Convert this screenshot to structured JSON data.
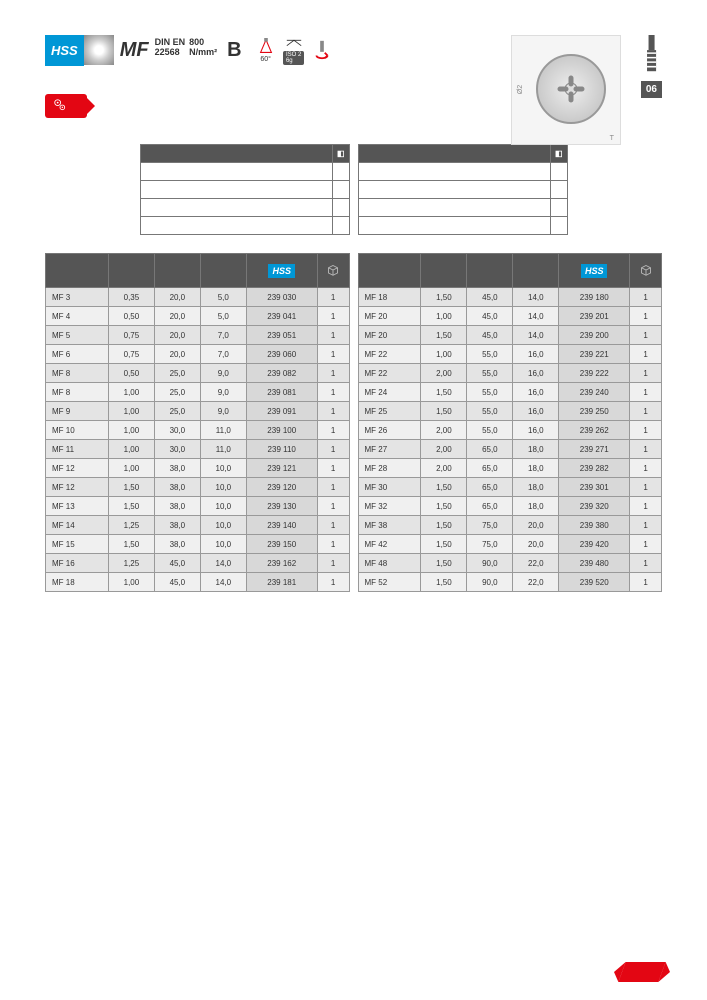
{
  "page_number": "06",
  "header": {
    "hss": "HSS",
    "mf": "MF",
    "din": "DIN EN",
    "din_num": "22568",
    "strength": "800",
    "strength_unit": "N/mm²",
    "class": "B",
    "angle": "60°",
    "iso": "ISO 2\n6g"
  },
  "diagram": {
    "d2": "Ø2",
    "t": "T"
  },
  "info_headers": [
    "",
    ""
  ],
  "columns": [
    "",
    "",
    "",
    "",
    ""
  ],
  "hss_label": "HSS",
  "left_rows": [
    [
      "MF  3",
      "0,35",
      "20,0",
      "5,0",
      "239 030",
      "1"
    ],
    [
      "MF  4",
      "0,50",
      "20,0",
      "5,0",
      "239 041",
      "1"
    ],
    [
      "MF  5",
      "0,75",
      "20,0",
      "7,0",
      "239 051",
      "1"
    ],
    [
      "MF  6",
      "0,75",
      "20,0",
      "7,0",
      "239 060",
      "1"
    ],
    [
      "MF  8",
      "0,50",
      "25,0",
      "9,0",
      "239 082",
      "1"
    ],
    [
      "MF  8",
      "1,00",
      "25,0",
      "9,0",
      "239 081",
      "1"
    ],
    [
      "MF  9",
      "1,00",
      "25,0",
      "9,0",
      "239 091",
      "1"
    ],
    [
      "MF 10",
      "1,00",
      "30,0",
      "11,0",
      "239 100",
      "1"
    ],
    [
      "MF 11",
      "1,00",
      "30,0",
      "11,0",
      "239 110",
      "1"
    ],
    [
      "MF 12",
      "1,00",
      "38,0",
      "10,0",
      "239 121",
      "1"
    ],
    [
      "MF 12",
      "1,50",
      "38,0",
      "10,0",
      "239 120",
      "1"
    ],
    [
      "MF 13",
      "1,50",
      "38,0",
      "10,0",
      "239 130",
      "1"
    ],
    [
      "MF 14",
      "1,25",
      "38,0",
      "10,0",
      "239 140",
      "1"
    ],
    [
      "MF 15",
      "1,50",
      "38,0",
      "10,0",
      "239 150",
      "1"
    ],
    [
      "MF 16",
      "1,25",
      "45,0",
      "14,0",
      "239 162",
      "1"
    ],
    [
      "MF 18",
      "1,00",
      "45,0",
      "14,0",
      "239 181",
      "1"
    ]
  ],
  "right_rows": [
    [
      "MF 18",
      "1,50",
      "45,0",
      "14,0",
      "239 180",
      "1"
    ],
    [
      "MF 20",
      "1,00",
      "45,0",
      "14,0",
      "239 201",
      "1"
    ],
    [
      "MF 20",
      "1,50",
      "45,0",
      "14,0",
      "239 200",
      "1"
    ],
    [
      "MF 22",
      "1,00",
      "55,0",
      "16,0",
      "239 221",
      "1"
    ],
    [
      "MF 22",
      "2,00",
      "55,0",
      "16,0",
      "239 222",
      "1"
    ],
    [
      "MF 24",
      "1,50",
      "55,0",
      "16,0",
      "239 240",
      "1"
    ],
    [
      "MF 25",
      "1,50",
      "55,0",
      "16,0",
      "239 250",
      "1"
    ],
    [
      "MF 26",
      "2,00",
      "55,0",
      "16,0",
      "239 262",
      "1"
    ],
    [
      "MF 27",
      "2,00",
      "65,0",
      "18,0",
      "239 271",
      "1"
    ],
    [
      "MF 28",
      "2,00",
      "65,0",
      "18,0",
      "239 282",
      "1"
    ],
    [
      "MF 30",
      "1,50",
      "65,0",
      "18,0",
      "239 301",
      "1"
    ],
    [
      "MF 32",
      "1,50",
      "65,0",
      "18,0",
      "239 320",
      "1"
    ],
    [
      "MF 38",
      "1,50",
      "75,0",
      "20,0",
      "239 380",
      "1"
    ],
    [
      "MF 42",
      "1,50",
      "75,0",
      "20,0",
      "239 420",
      "1"
    ],
    [
      "MF 48",
      "1,50",
      "90,0",
      "22,0",
      "239 480",
      "1"
    ],
    [
      "MF 52",
      "1,50",
      "90,0",
      "22,0",
      "239 520",
      "1"
    ]
  ]
}
